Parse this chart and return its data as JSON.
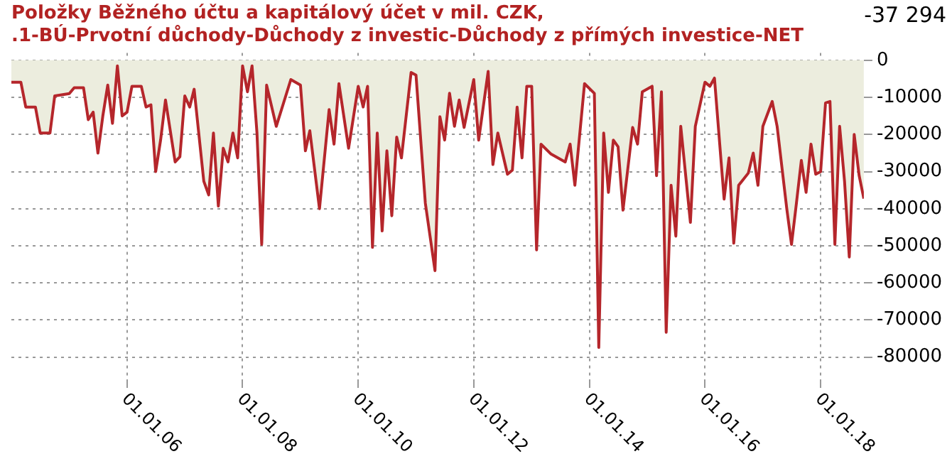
{
  "chart_data": {
    "type": "area",
    "title": "Položky Běžného účtu a kapitálový účet v mil. CZK,\n.1-BÚ-Prvotní důchody-Důchody z investic-Důchody z přímých investice-NET",
    "x": [
      "2004-01",
      "2004-03",
      "2004-04",
      "2004-06",
      "2004-07",
      "2004-09",
      "2004-10",
      "2005-01",
      "2005-02",
      "2005-04",
      "2005-05",
      "2005-06",
      "2005-07",
      "2005-08",
      "2005-09",
      "2005-10",
      "2005-11",
      "2005-12",
      "2006-01",
      "2006-02",
      "2006-04",
      "2006-05",
      "2006-06",
      "2006-07",
      "2006-08",
      "2006-09",
      "2006-11",
      "2006-12",
      "2007-01",
      "2007-02",
      "2007-03",
      "2007-05",
      "2007-06",
      "2007-07",
      "2007-08",
      "2007-09",
      "2007-10",
      "2007-11",
      "2007-12",
      "2008-01",
      "2008-02",
      "2008-03",
      "2008-04",
      "2008-05",
      "2008-06",
      "2008-08",
      "2008-11",
      "2009-01",
      "2009-02",
      "2009-03",
      "2009-05",
      "2009-07",
      "2009-08",
      "2009-09",
      "2009-11",
      "2010-01",
      "2010-02",
      "2010-03",
      "2010-04",
      "2010-05",
      "2010-06",
      "2010-07",
      "2010-08",
      "2010-09",
      "2010-10",
      "2010-12",
      "2011-01",
      "2011-03",
      "2011-05",
      "2011-06",
      "2011-07",
      "2011-08",
      "2011-09",
      "2011-10",
      "2011-11",
      "2012-01",
      "2012-02",
      "2012-04",
      "2012-05",
      "2012-06",
      "2012-08",
      "2012-09",
      "2012-10",
      "2012-11",
      "2012-12",
      "2013-01",
      "2013-02",
      "2013-03",
      "2013-05",
      "2013-08",
      "2013-09",
      "2013-10",
      "2013-12",
      "2014-02",
      "2014-03",
      "2014-04",
      "2014-05",
      "2014-06",
      "2014-07",
      "2014-08",
      "2014-10",
      "2014-11",
      "2014-12",
      "2015-02",
      "2015-03",
      "2015-04",
      "2015-05",
      "2015-06",
      "2015-07",
      "2015-08",
      "2015-10",
      "2015-11",
      "2016-01",
      "2016-02",
      "2016-03",
      "2016-05",
      "2016-06",
      "2016-07",
      "2016-08",
      "2016-10",
      "2016-11",
      "2016-12",
      "2017-01",
      "2017-03",
      "2017-04",
      "2017-06",
      "2017-07",
      "2017-08",
      "2017-09",
      "2017-10",
      "2017-11",
      "2017-12",
      "2018-01",
      "2018-02",
      "2018-03",
      "2018-04",
      "2018-05",
      "2018-06",
      "2018-07",
      "2018-08",
      "2018-09",
      "2018-10"
    ],
    "series": [
      {
        "color": "#b5262b",
        "values": [
          -5900,
          -5900,
          -12600,
          -12600,
          -19600,
          -19600,
          -9600,
          -9000,
          -7400,
          -7400,
          -16000,
          -14000,
          -25000,
          -15000,
          -6700,
          -17000,
          -1500,
          -15000,
          -14000,
          -7000,
          -7000,
          -12600,
          -12000,
          -30000,
          -21500,
          -10700,
          -27400,
          -26000,
          -9600,
          -12600,
          -7800,
          -32600,
          -36300,
          -19600,
          -39300,
          -23700,
          -27400,
          -19600,
          -26300,
          -1500,
          -8500,
          -1500,
          -19600,
          -49600,
          -6700,
          -17800,
          -5200,
          -6700,
          -24400,
          -19000,
          -40000,
          -13300,
          -22600,
          -6300,
          -23700,
          -7000,
          -12600,
          -7000,
          -50400,
          -19600,
          -46000,
          -24400,
          -41900,
          -20700,
          -26300,
          -3300,
          -4000,
          -38500,
          -56700,
          -15200,
          -21500,
          -8900,
          -17800,
          -10700,
          -18100,
          -5200,
          -21500,
          -3000,
          -28100,
          -19600,
          -30700,
          -29600,
          -12600,
          -26300,
          -7000,
          -7000,
          -51100,
          -22600,
          -25200,
          -27400,
          -22600,
          -33700,
          -6300,
          -8900,
          -77400,
          -19600,
          -35600,
          -21500,
          -23300,
          -40400,
          -18100,
          -22600,
          -8500,
          -7000,
          -31100,
          -8500,
          -73300,
          -33700,
          -47400,
          -17800,
          -43700,
          -17800,
          -5900,
          -7000,
          -4800,
          -37400,
          -26300,
          -49300,
          -33700,
          -30400,
          -25000,
          -33700,
          -17800,
          -11100,
          -17800,
          -40000,
          -49600,
          -38500,
          -27000,
          -35600,
          -22600,
          -30700,
          -30000,
          -11500,
          -11100,
          -49600,
          -17800,
          -32600,
          -53000,
          -20000,
          -31000,
          -37294
        ]
      }
    ],
    "annotations": [
      "-37 294"
    ],
    "xlim": [
      "2004-01",
      "2018-10"
    ],
    "xticks": [
      {
        "value": "2006-01",
        "label": "01.01.06"
      },
      {
        "value": "2008-01",
        "label": "01.01.08"
      },
      {
        "value": "2010-01",
        "label": "01.01.10"
      },
      {
        "value": "2012-01",
        "label": "01.01.12"
      },
      {
        "value": "2014-01",
        "label": "01.01.14"
      },
      {
        "value": "2016-01",
        "label": "01.01.16"
      },
      {
        "value": "2018-01",
        "label": "01.01.18"
      }
    ],
    "ylim": [
      -86000,
      2000
    ],
    "yticks": [
      0,
      -10000,
      -20000,
      -30000,
      -40000,
      -50000,
      -60000,
      -70000,
      -80000
    ],
    "grid": true,
    "legend": false,
    "line_style": "solid",
    "marker": "none"
  }
}
